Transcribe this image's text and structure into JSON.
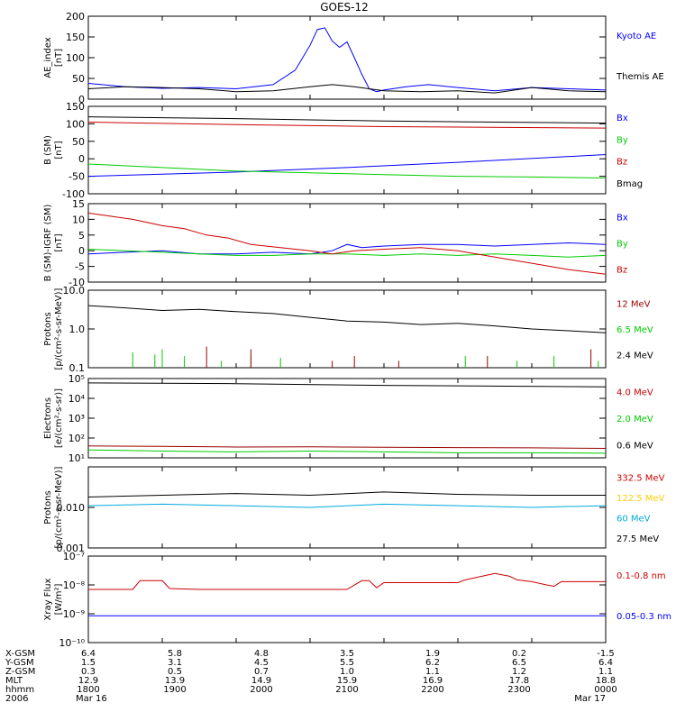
{
  "title": "GOES-12",
  "chart_data": [
    {
      "type": "line",
      "ylabel": "AE_index\n[nT]",
      "ylim": [
        0,
        200
      ],
      "yticks": [
        0,
        50,
        100,
        150,
        200
      ],
      "legend": [
        {
          "text": "Kyoto AE",
          "color": "#0000ff"
        },
        {
          "text": "Themis AE",
          "color": "#000000"
        }
      ],
      "series": [
        {
          "name": "Kyoto AE",
          "color": "#0000ff",
          "x": [
            0,
            0.5,
            1,
            1.5,
            2,
            2.5,
            2.8,
            3.0,
            3.1,
            3.2,
            3.3,
            3.4,
            3.5,
            3.6,
            3.7,
            3.8,
            3.9,
            4.0,
            4.3,
            4.6,
            5.0,
            5.5,
            6.0,
            6.5,
            7.0
          ],
          "y": [
            38,
            30,
            26,
            28,
            25,
            35,
            70,
            130,
            168,
            172,
            140,
            125,
            138,
            100,
            60,
            25,
            18,
            22,
            30,
            35,
            28,
            20,
            28,
            25,
            22
          ]
        },
        {
          "name": "Themis AE",
          "color": "#000000",
          "x": [
            0,
            0.5,
            1,
            1.5,
            2,
            2.5,
            3.0,
            3.3,
            3.6,
            4.0,
            4.5,
            5.0,
            5.5,
            6.0,
            6.5,
            7.0
          ],
          "y": [
            25,
            30,
            28,
            25,
            18,
            20,
            30,
            35,
            30,
            20,
            18,
            20,
            15,
            28,
            20,
            18
          ]
        }
      ]
    },
    {
      "type": "line",
      "ylabel": "B (SM)\n[nT]",
      "ylim": [
        -100,
        150
      ],
      "yticks": [
        -100,
        -50,
        0,
        50,
        100,
        150
      ],
      "legend": [
        {
          "text": "Bx",
          "color": "#0000ff"
        },
        {
          "text": "By",
          "color": "#00cc00"
        },
        {
          "text": "Bz",
          "color": "#cc0000"
        },
        {
          "text": "Bmag",
          "color": "#000000"
        }
      ],
      "series": [
        {
          "name": "Bx",
          "color": "#0000ff",
          "x": [
            0,
            2,
            3.5,
            5,
            7
          ],
          "y": [
            -50,
            -38,
            -25,
            -10,
            12
          ]
        },
        {
          "name": "By",
          "color": "#00cc00",
          "x": [
            0,
            1,
            2,
            3,
            4,
            5,
            6,
            7
          ],
          "y": [
            -15,
            -25,
            -35,
            -40,
            -45,
            -50,
            -52,
            -55
          ]
        },
        {
          "name": "Bz",
          "color": "#cc0000",
          "x": [
            0,
            2,
            4,
            7
          ],
          "y": [
            105,
            98,
            92,
            88
          ]
        },
        {
          "name": "Bmag",
          "color": "#000000",
          "x": [
            0,
            2,
            4,
            7
          ],
          "y": [
            120,
            115,
            108,
            102
          ]
        }
      ]
    },
    {
      "type": "line",
      "ylabel": "B (SM)-IGRF (SM)\n[nT]",
      "ylim": [
        -10,
        15
      ],
      "yticks": [
        -10,
        -5,
        0,
        5,
        10,
        15
      ],
      "legend": [
        {
          "text": "Bx",
          "color": "#0000ff"
        },
        {
          "text": "By",
          "color": "#00cc00"
        },
        {
          "text": "Bz",
          "color": "#cc0000"
        }
      ],
      "series": [
        {
          "name": "Bx",
          "color": "#0000ff",
          "x": [
            0,
            0.5,
            1,
            1.5,
            2,
            2.5,
            3,
            3.3,
            3.5,
            3.7,
            4,
            4.5,
            5,
            5.5,
            6,
            6.5,
            7
          ],
          "y": [
            -1,
            -0.5,
            0,
            -1,
            -1,
            -0.5,
            -1,
            0,
            2,
            1,
            1.5,
            2,
            2,
            1.5,
            2,
            2.5,
            2
          ]
        },
        {
          "name": "By",
          "color": "#00cc00",
          "x": [
            0,
            0.5,
            1,
            1.5,
            2,
            2.5,
            3,
            3.5,
            4,
            4.5,
            5,
            5.5,
            6,
            6.5,
            7
          ],
          "y": [
            0.5,
            0,
            -0.5,
            -1,
            -1.5,
            -1.5,
            -1,
            -1,
            -1.5,
            -1,
            -1.5,
            -1,
            -1.5,
            -2,
            -1.5
          ]
        },
        {
          "name": "Bz",
          "color": "#cc0000",
          "x": [
            0,
            0.3,
            0.6,
            0.8,
            1.0,
            1.3,
            1.6,
            1.9,
            2.2,
            2.6,
            3.0,
            3.3,
            3.6,
            4.0,
            4.5,
            5.0,
            5.5,
            6.0,
            6.5,
            7.0
          ],
          "y": [
            12,
            11,
            10,
            9,
            8,
            7,
            5,
            4,
            2,
            1,
            0,
            -1,
            0,
            0.5,
            1,
            0,
            -2,
            -4,
            -6,
            -7.5
          ]
        }
      ]
    },
    {
      "type": "line",
      "ylabel": "Protons\n[p/(cm²-s-sr-MeV)]",
      "yscale": "log",
      "ylim": [
        0.1,
        10
      ],
      "ytick_labels": [
        "0.1",
        "1.0",
        "10.0"
      ],
      "legend": [
        {
          "text": "12 MeV",
          "color": "#990000"
        },
        {
          "text": "6.5 MeV",
          "color": "#00cc00"
        },
        {
          "text": "2.4 MeV",
          "color": "#000000"
        }
      ],
      "series": [
        {
          "name": "2.4 MeV",
          "color": "#000000",
          "x": [
            0,
            0.5,
            1,
            1.5,
            2,
            2.5,
            3,
            3.5,
            4,
            4.5,
            5,
            5.5,
            6,
            6.5,
            7
          ],
          "y": [
            4,
            3.5,
            3,
            3.2,
            2.8,
            2.5,
            2,
            1.6,
            1.5,
            1.3,
            1.4,
            1.2,
            1.0,
            0.9,
            0.8
          ]
        },
        {
          "name": "6.5 MeV",
          "color": "#00cc00",
          "x": [
            0.6,
            0.9,
            1.0,
            1.3,
            1.8,
            2.2,
            2.6,
            5.1,
            5.8,
            6.3,
            6.9
          ],
          "y": [
            0.25,
            0.22,
            0.3,
            0.2,
            0.15,
            0.2,
            0.18,
            0.2,
            0.15,
            0.2,
            0.15
          ]
        },
        {
          "name": "12 MeV",
          "color": "#990000",
          "x": [
            1.6,
            2.2,
            3.3,
            3.6,
            4.2,
            5.4,
            6.8
          ],
          "y": [
            0.35,
            0.3,
            0.15,
            0.2,
            0.15,
            0.2,
            0.3
          ]
        }
      ]
    },
    {
      "type": "line",
      "ylabel": "Electrons\n[e/(cm²-s-sr)]",
      "yscale": "log",
      "ylim": [
        10,
        100000
      ],
      "ytick_labels": [
        "10¹",
        "10²",
        "10³",
        "10⁴",
        "10⁵"
      ],
      "legend": [
        {
          "text": "4.0 MeV",
          "color": "#cc0000"
        },
        {
          "text": "2.0 MeV",
          "color": "#00cc00"
        },
        {
          "text": "0.6 MeV",
          "color": "#000000"
        }
      ],
      "series": [
        {
          "name": "0.6 MeV",
          "color": "#000000",
          "x": [
            0,
            2,
            4,
            7
          ],
          "y": [
            60000,
            55000,
            45000,
            38000
          ]
        },
        {
          "name": "4.0 MeV",
          "color": "#990000",
          "x": [
            0,
            1,
            2,
            3,
            4,
            5,
            6,
            7
          ],
          "y": [
            40,
            38,
            35,
            36,
            34,
            33,
            32,
            30
          ]
        },
        {
          "name": "2.0 MeV",
          "color": "#00cc00",
          "x": [
            0,
            1,
            2,
            3,
            4,
            5,
            6,
            7
          ],
          "y": [
            25,
            22,
            20,
            22,
            20,
            18,
            18,
            17
          ]
        }
      ]
    },
    {
      "type": "line",
      "ylabel": "Protons\n[p/(cm²-s-sr-MeV)]",
      "yscale": "log",
      "ylim": [
        0.001,
        0.1
      ],
      "ytick_labels": [
        "0.001",
        "0.010"
      ],
      "legend": [
        {
          "text": "332.5 MeV",
          "color": "#cc0000"
        },
        {
          "text": "122.5 MeV",
          "color": "#ffcc00"
        },
        {
          "text": "60 MeV",
          "color": "#00aadd"
        },
        {
          "text": "27.5 MeV",
          "color": "#000000"
        }
      ],
      "series": [
        {
          "name": "27.5 MeV",
          "color": "#000000",
          "x": [
            0,
            1,
            2,
            3,
            4,
            5,
            6,
            7
          ],
          "y": [
            0.018,
            0.02,
            0.022,
            0.02,
            0.024,
            0.021,
            0.02,
            0.02
          ]
        },
        {
          "name": "60 MeV",
          "color": "#00aadd",
          "x": [
            0,
            1,
            2,
            3,
            4,
            5,
            6,
            7
          ],
          "y": [
            0.011,
            0.012,
            0.011,
            0.01,
            0.012,
            0.011,
            0.01,
            0.011
          ]
        }
      ]
    },
    {
      "type": "line",
      "ylabel": "Xray Flux\n[W/m²]",
      "yscale": "log",
      "ylim": [
        1e-10,
        1e-07
      ],
      "ytick_labels": [
        "10⁻¹⁰",
        "10⁻⁹",
        "10⁻⁸",
        "10⁻⁷"
      ],
      "legend": [
        {
          "text": "0.1-0.8 nm",
          "color": "#cc0000"
        },
        {
          "text": "0.05-0.3 nm",
          "color": "#0000ff"
        }
      ],
      "series": [
        {
          "name": "0.1-0.8 nm",
          "color": "#cc0000",
          "x": [
            0,
            0.6,
            0.7,
            1.0,
            1.1,
            1.5,
            2.0,
            2.5,
            3.0,
            3.5,
            3.7,
            3.8,
            3.9,
            4.0,
            4.5,
            5.0,
            5.1,
            5.5,
            5.7,
            5.8,
            6.0,
            6.2,
            6.3,
            6.4,
            7.0
          ],
          "y": [
            7e-09,
            7e-09,
            1.4e-08,
            1.4e-08,
            7.5e-09,
            7e-09,
            7e-09,
            7e-09,
            7e-09,
            7e-09,
            1.4e-08,
            1.4e-08,
            8e-09,
            1.2e-08,
            1.2e-08,
            1.2e-08,
            1.5e-08,
            2.5e-08,
            2e-08,
            1.5e-08,
            1.3e-08,
            1e-08,
            9e-09,
            1.3e-08,
            1.3e-08
          ]
        },
        {
          "name": "0.05-0.3 nm",
          "color": "#0000ff",
          "x": [
            0,
            7
          ],
          "y": [
            8.5e-10,
            8.5e-10
          ]
        }
      ]
    }
  ],
  "x_axis": {
    "row_labels": [
      "X-GSM",
      "Y-GSM",
      "Z-GSM",
      "MLT",
      "hhmm",
      "2006"
    ],
    "columns": [
      [
        "6.4",
        "1.5",
        "0.3",
        "12.9",
        "1800",
        "Mar 16"
      ],
      [
        "5.8",
        "3.1",
        "0.5",
        "13.9",
        "1900",
        ""
      ],
      [
        "4.8",
        "4.5",
        "0.7",
        "14.9",
        "2000",
        ""
      ],
      [
        "3.5",
        "5.5",
        "1.0",
        "15.9",
        "2100",
        ""
      ],
      [
        "1.9",
        "6.2",
        "1.1",
        "16.9",
        "2200",
        ""
      ],
      [
        "0.2",
        "6.5",
        "1.2",
        "17.8",
        "2300",
        ""
      ],
      [
        "-1.5",
        "6.4",
        "1.1",
        "18.8",
        "0000",
        "Mar 17"
      ]
    ]
  }
}
